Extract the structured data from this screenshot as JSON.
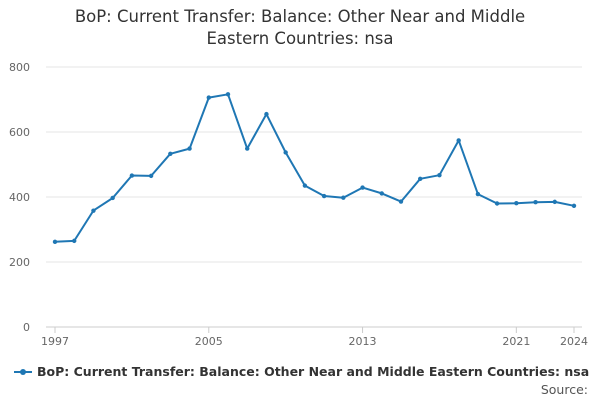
{
  "chart_data": {
    "type": "line",
    "title_lines": [
      "BoP: Current Transfer: Balance: Other Near and Middle",
      "Eastern Countries: nsa"
    ],
    "xlabel": "",
    "ylabel": "",
    "ylim": [
      0,
      800
    ],
    "yticks": [
      "0",
      "200",
      "400",
      "600",
      "800"
    ],
    "xlim": [
      1997,
      2024
    ],
    "xticks": [
      "1997",
      "2005",
      "2013",
      "2021",
      "2024"
    ],
    "grid": true,
    "legend_position": "bottom-left",
    "color": "#1f77b4",
    "series": [
      {
        "name": "BoP: Current Transfer: Balance: Other Near and Middle Eastern Countries: nsa",
        "x": [
          1997,
          1998,
          1999,
          2000,
          2001,
          2002,
          2003,
          2004,
          2005,
          2006,
          2007,
          2008,
          2009,
          2010,
          2011,
          2012,
          2013,
          2014,
          2015,
          2016,
          2017,
          2018,
          2019,
          2020,
          2021,
          2022,
          2023,
          2024
        ],
        "values": [
          262,
          265,
          358,
          397,
          466,
          465,
          533,
          549,
          706,
          716,
          549,
          655,
          537,
          435,
          403,
          398,
          429,
          411,
          386,
          456,
          467,
          574,
          409,
          380,
          381,
          384,
          385,
          373
        ]
      }
    ]
  },
  "source_label": "Source:"
}
